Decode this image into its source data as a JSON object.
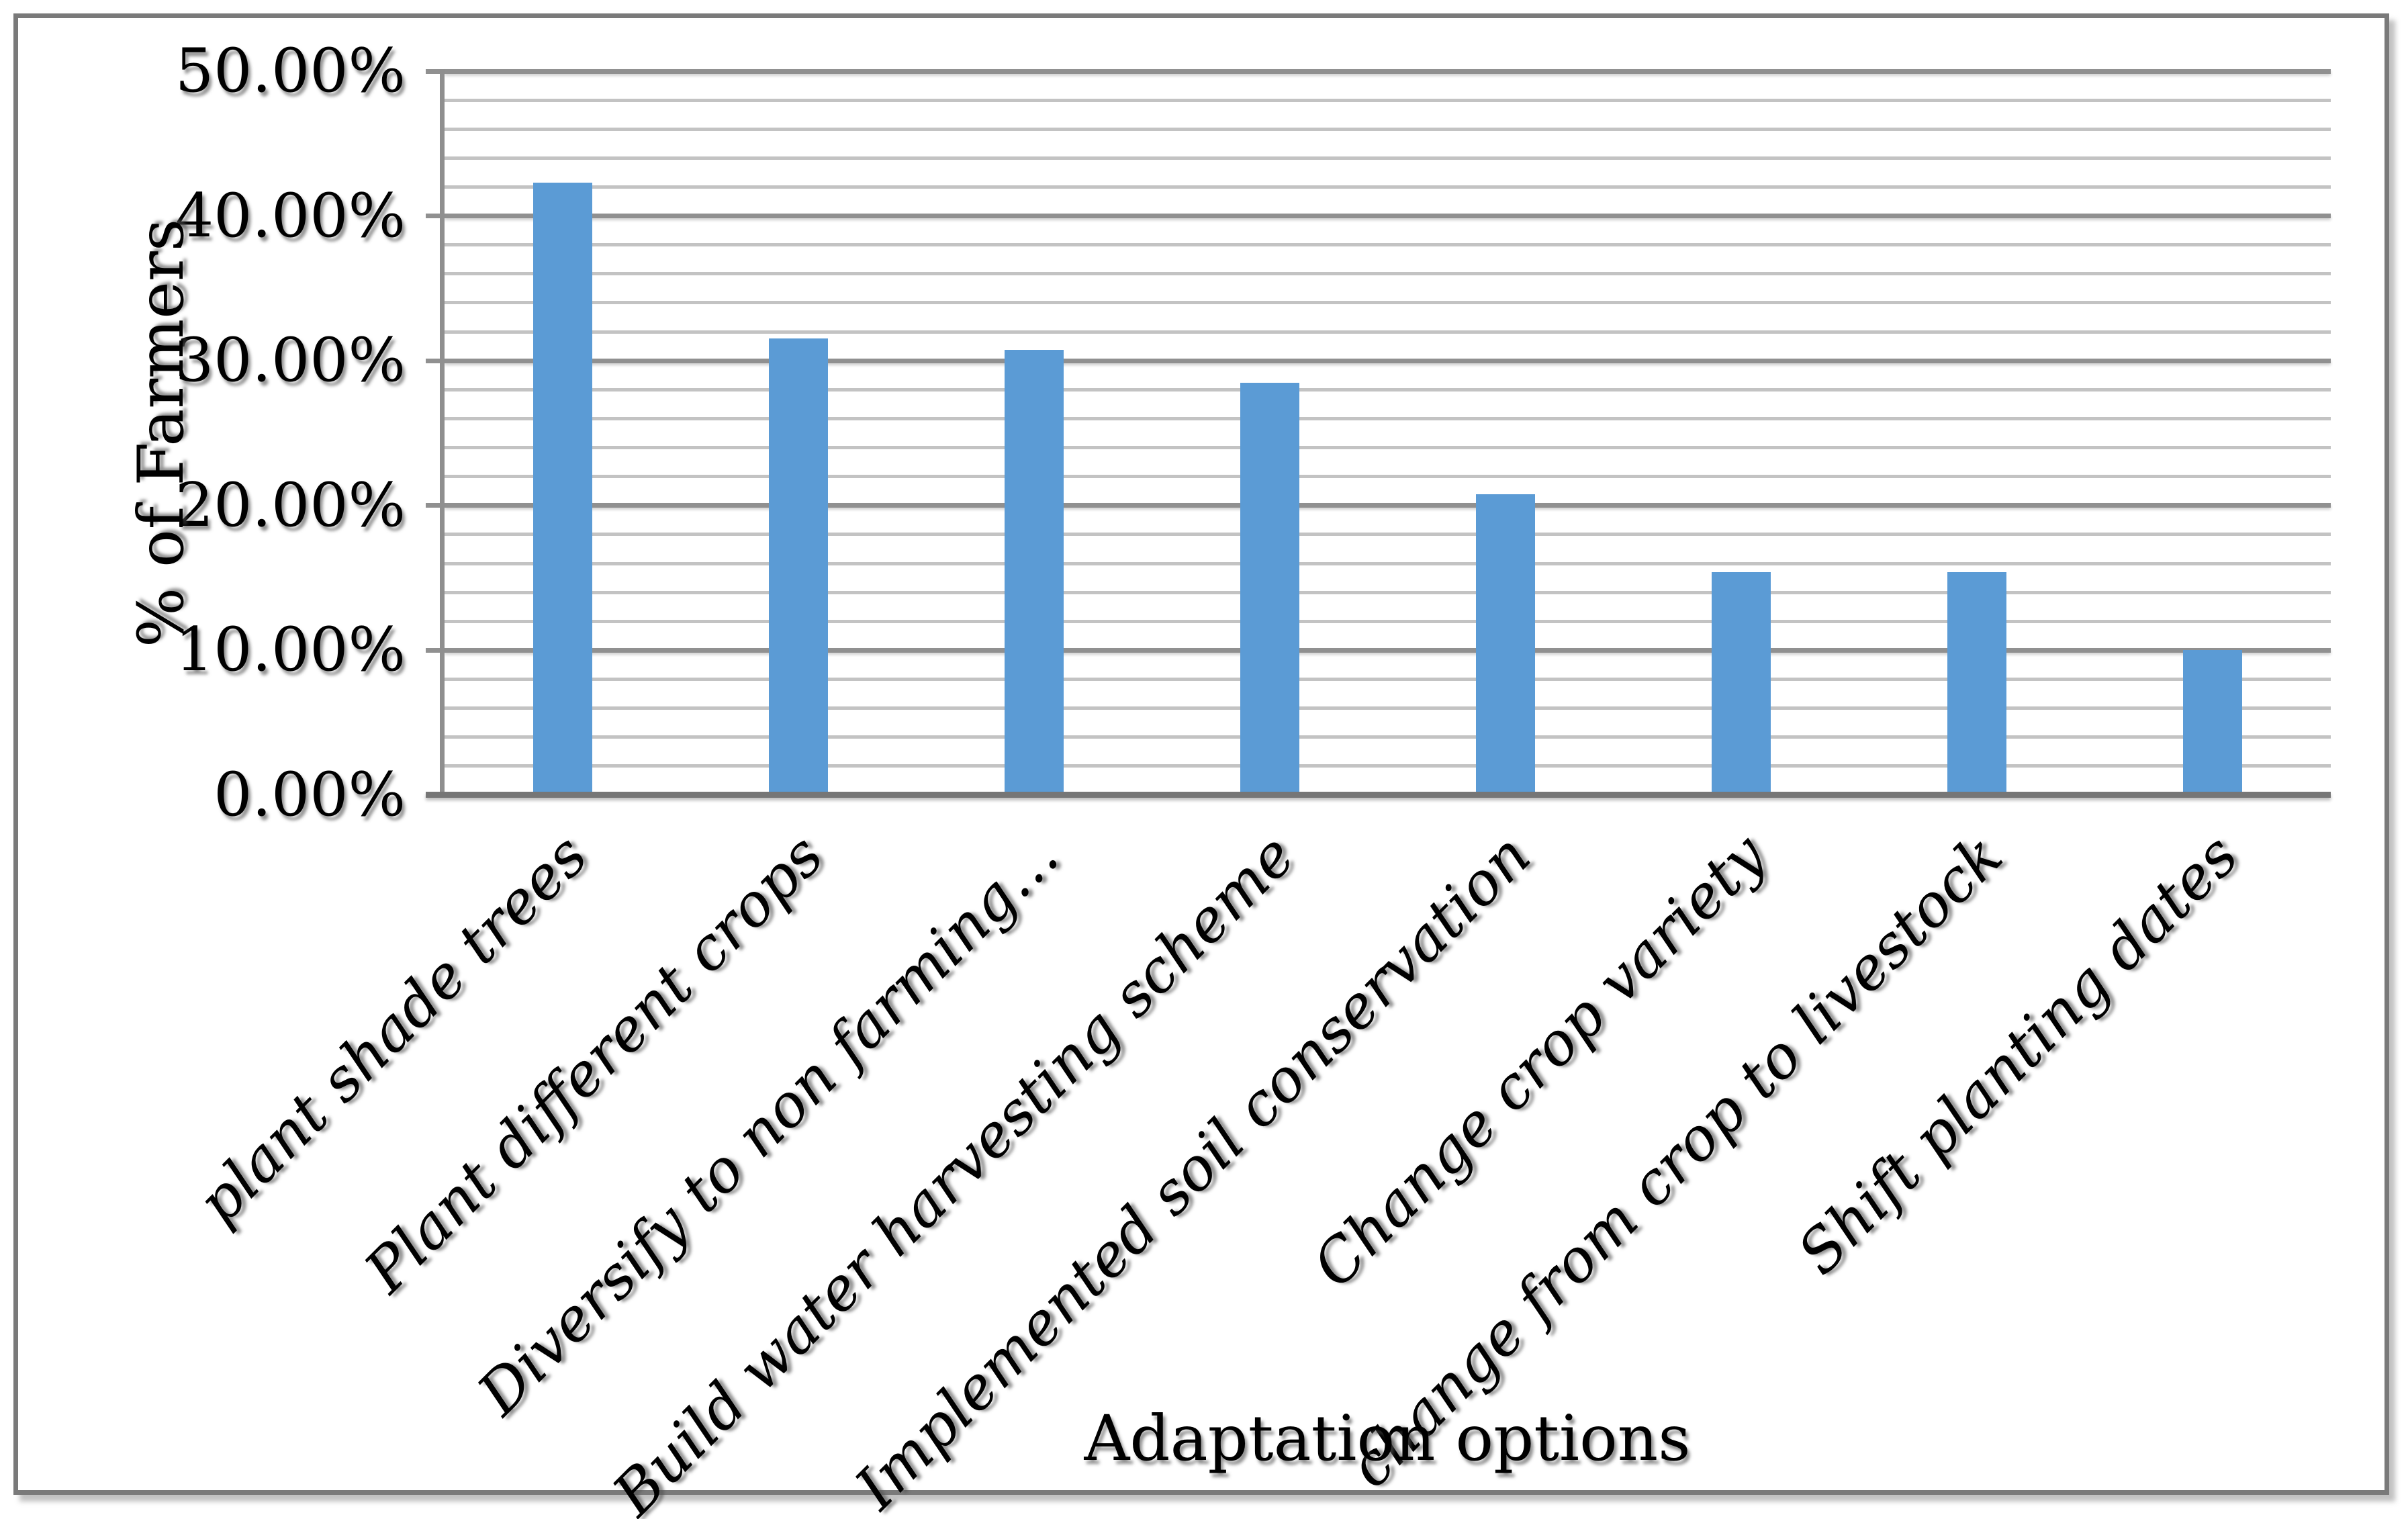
{
  "chart_data": {
    "type": "bar",
    "title": "",
    "categories": [
      "plant shade trees",
      "Plant different crops",
      "Diversify to non farming…",
      "Build water harvesting scheme",
      "Implemented soil conservation",
      "Change crop variety",
      "change from crop to livestock",
      "Shift planting dates"
    ],
    "values": [
      42.31,
      31.54,
      30.77,
      28.46,
      20.77,
      15.38,
      15.38,
      10.0
    ],
    "xlabel": "Adaptation options",
    "ylabel": "% of Farmers",
    "ylim": [
      0,
      50
    ],
    "ytick_labels_top_to_bottom": [
      "50.00%",
      "40.00%",
      "30.00%",
      "20.00%",
      "10.00%",
      "0.00%"
    ],
    "major_gridline_step_percent": 10,
    "minor_gridline_step_percent": 2,
    "grid": "horizontal major+minor",
    "legend_position": "none",
    "bar_orientation": "vertical",
    "category_label_rotation_deg": 45,
    "colors": {
      "bar": "#5B9BD5",
      "axis_line": "#8F8F8F",
      "baseline": "#767676",
      "major_gridline": "#909090",
      "minor_gridline": "#C3C3C3",
      "border": "#7A7A7A",
      "text": "#000000"
    }
  }
}
